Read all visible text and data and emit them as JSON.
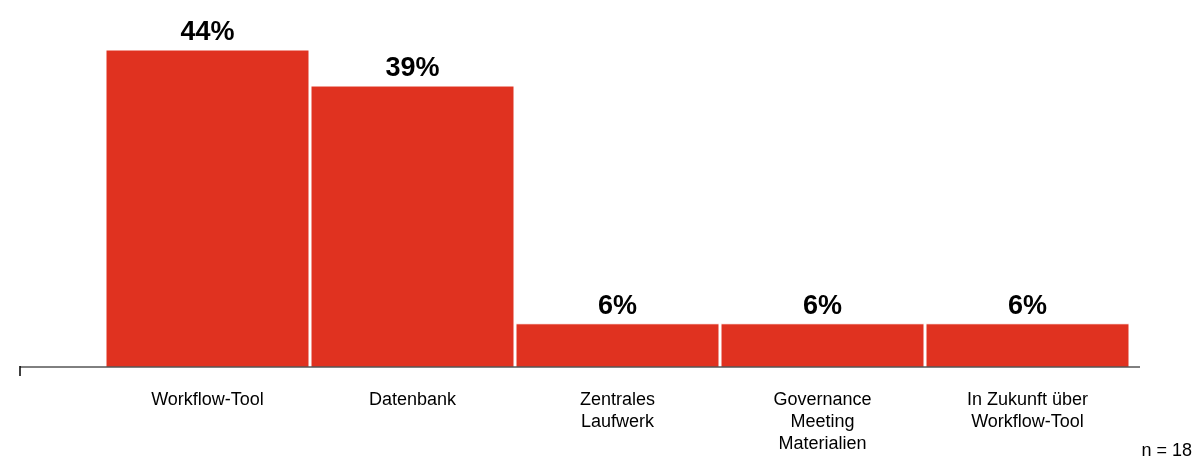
{
  "chart_data": {
    "type": "bar",
    "categories": [
      "Workflow-Tool",
      "Datenbank",
      "Zentrales Laufwerk",
      "Governance Meeting Materialien",
      "In Zukunft über Workflow-Tool"
    ],
    "values": [
      44,
      39,
      6,
      6,
      6
    ],
    "value_labels": [
      "44%",
      "39%",
      "6%",
      "6%",
      "6%"
    ],
    "color": "#e03220",
    "annotations": [
      "n = 18"
    ]
  }
}
